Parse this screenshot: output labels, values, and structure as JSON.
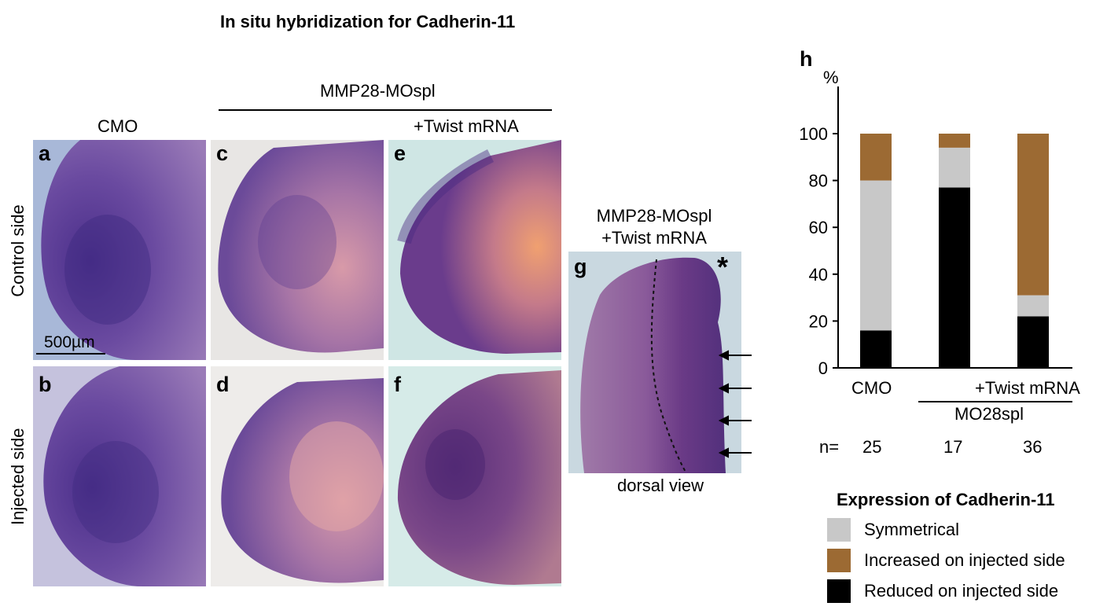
{
  "figure": {
    "title": "In situ hybridization for Cadherin-11",
    "group_label": "MMP28-MOspl",
    "col_labels": {
      "cmo": "CMO",
      "twist": "+Twist mRNA"
    },
    "row_labels": {
      "control": "Control side",
      "injected": "Injected side"
    },
    "scale_bar": "500µm",
    "panels": {
      "a": "a",
      "b": "b",
      "c": "c",
      "d": "d",
      "e": "e",
      "f": "f",
      "g": "g",
      "h": "h"
    },
    "panel_g": {
      "title_line1": "MMP28-MOspl",
      "title_line2": "+Twist mRNA",
      "asterisk": "*",
      "caption": "dorsal view"
    }
  },
  "chart_data": {
    "type": "bar",
    "stacked": true,
    "title": "",
    "ylabel": "%",
    "ylim": [
      0,
      100
    ],
    "yticks": [
      0,
      20,
      40,
      60,
      80,
      100
    ],
    "categories": [
      "CMO",
      "MO28spl",
      "MO28spl +Twist mRNA"
    ],
    "x_labels": {
      "cmo": "CMO",
      "twist": "+Twist mRNA",
      "group": "MO28spl"
    },
    "n_label": "n=",
    "n": [
      "25",
      "17",
      "36"
    ],
    "legend_title": "Expression of Cadherin-11",
    "series": [
      {
        "name": "Reduced on injected side",
        "color": "#000000",
        "values": [
          16,
          77,
          22
        ]
      },
      {
        "name": "Symmetrical",
        "color": "#c8c8c8",
        "values": [
          64,
          17,
          9
        ]
      },
      {
        "name": "Increased on injected side",
        "color": "#9c6a33",
        "values": [
          20,
          6,
          69
        ]
      }
    ],
    "legend_order": [
      1,
      2,
      0
    ]
  }
}
